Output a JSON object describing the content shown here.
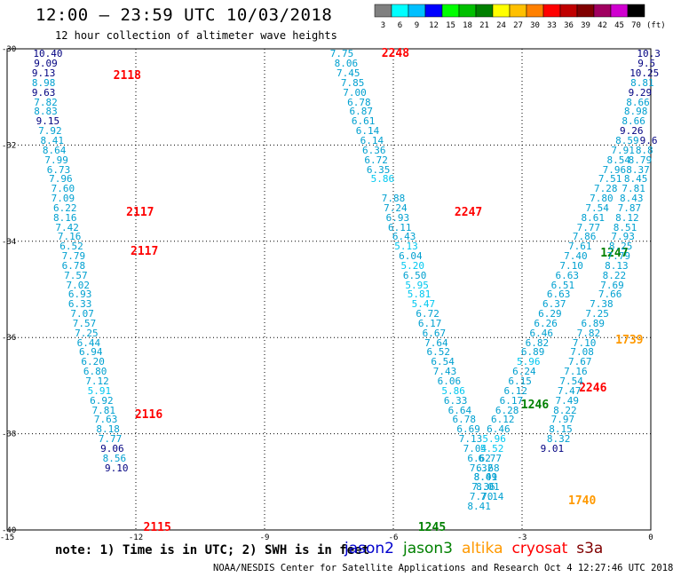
{
  "header": {
    "title": "12:00 – 23:59 UTC 10/03/2018",
    "subtitle": "12 hour collection of altimeter wave heights"
  },
  "colorbar": {
    "units": "(ft)",
    "bins": [
      {
        "label": "3",
        "color": "#808080"
      },
      {
        "label": "6",
        "color": "#00ffff"
      },
      {
        "label": "9",
        "color": "#00c0ff"
      },
      {
        "label": "12",
        "color": "#0000ff"
      },
      {
        "label": "15",
        "color": "#00ff00"
      },
      {
        "label": "18",
        "color": "#00c000"
      },
      {
        "label": "21",
        "color": "#008000"
      },
      {
        "label": "24",
        "color": "#ffff00"
      },
      {
        "label": "27",
        "color": "#ffc000"
      },
      {
        "label": "30",
        "color": "#ff8000"
      },
      {
        "label": "33",
        "color": "#ff0000"
      },
      {
        "label": "36",
        "color": "#c00000"
      },
      {
        "label": "39",
        "color": "#800000"
      },
      {
        "label": "42",
        "color": "#a00060"
      },
      {
        "label": "45",
        "color": "#d000d0"
      },
      {
        "label": "70",
        "color": "#000000"
      }
    ]
  },
  "axes": {
    "lat_labels": [
      "-30",
      "-32",
      "-34",
      "-36",
      "-38",
      "-40"
    ],
    "lon_labels": [
      "-15",
      "-12",
      "-9",
      "-6",
      "-3",
      "0"
    ]
  },
  "map": {
    "lon_range": [
      -15,
      0
    ],
    "lat_range": [
      -40,
      -30
    ]
  },
  "tracks": [
    {
      "name": "track-2118",
      "satellite": "cryosat",
      "times": [
        {
          "text": "2118",
          "lon": -12.2,
          "lat": -30.55
        },
        {
          "text": "2117",
          "lon": -11.9,
          "lat": -33.4
        },
        {
          "text": "2117",
          "lon": -11.8,
          "lat": -34.2
        },
        {
          "text": "2116",
          "lon": -11.7,
          "lat": -37.6
        },
        {
          "text": "2115",
          "lon": -11.5,
          "lat": -39.95
        }
      ],
      "points": [
        [
          "10.40",
          -14.05,
          -30.1,
          "#000080"
        ],
        [
          "9.09",
          -14.1,
          -30.3,
          "#000080"
        ],
        [
          "9.13",
          -14.15,
          -30.5,
          "#000080"
        ],
        [
          "8.98",
          -14.15,
          -30.7,
          "#00a0d0"
        ],
        [
          "9.63",
          -14.15,
          -30.9,
          "#000080"
        ],
        [
          "7.82",
          -14.1,
          -31.1,
          "#00a0d0"
        ],
        [
          "8.83",
          -14.1,
          -31.3,
          "#00a0d0"
        ],
        [
          "9.15",
          -14.05,
          -31.5,
          "#000080"
        ],
        [
          "7.92",
          -14.0,
          -31.7,
          "#00a0d0"
        ],
        [
          "8.41",
          -13.95,
          -31.9,
          "#00a0d0"
        ],
        [
          "8.64",
          -13.9,
          -32.1,
          "#00a0d0"
        ],
        [
          "7.99",
          -13.85,
          -32.3,
          "#00a0d0"
        ],
        [
          "6.73",
          -13.8,
          -32.5,
          "#00a0d0"
        ],
        [
          "7.96",
          -13.75,
          -32.7,
          "#00a0d0"
        ],
        [
          "7.60",
          -13.7,
          -32.9,
          "#00a0d0"
        ],
        [
          "7.09",
          -13.7,
          -33.1,
          "#00a0d0"
        ],
        [
          "6.22",
          -13.65,
          -33.3,
          "#00a0d0"
        ],
        [
          "8.16",
          -13.65,
          -33.5,
          "#00a0d0"
        ],
        [
          "7.42",
          -13.6,
          -33.7,
          "#00a0d0"
        ],
        [
          "7.16",
          -13.55,
          -33.9,
          "#00a0d0"
        ],
        [
          "6.52",
          -13.5,
          -34.1,
          "#00a0d0"
        ],
        [
          "7.79",
          -13.45,
          -34.3,
          "#00a0d0"
        ],
        [
          "6.78",
          -13.45,
          -34.5,
          "#00a0d0"
        ],
        [
          "7.57",
          -13.4,
          -34.7,
          "#00a0d0"
        ],
        [
          "7.02",
          -13.35,
          -34.9,
          "#00a0d0"
        ],
        [
          "6.93",
          -13.3,
          -35.1,
          "#00a0d0"
        ],
        [
          "6.33",
          -13.3,
          -35.3,
          "#00a0d0"
        ],
        [
          "7.07",
          -13.25,
          -35.5,
          "#00a0d0"
        ],
        [
          "7.57",
          -13.2,
          -35.7,
          "#00a0d0"
        ],
        [
          "7.25",
          -13.15,
          -35.9,
          "#00a0d0"
        ],
        [
          "6.44",
          -13.1,
          -36.1,
          "#00a0d0"
        ],
        [
          "6.94",
          -13.05,
          -36.3,
          "#00a0d0"
        ],
        [
          "6.20",
          -13.0,
          -36.5,
          "#00a0d0"
        ],
        [
          "6.80",
          -12.95,
          -36.7,
          "#00a0d0"
        ],
        [
          "7.12",
          -12.9,
          -36.9,
          "#00a0d0"
        ],
        [
          "5.91",
          -12.85,
          -37.1,
          "#00c8f0"
        ],
        [
          "6.92",
          -12.8,
          -37.3,
          "#00a0d0"
        ],
        [
          "7.81",
          -12.75,
          -37.5,
          "#00a0d0"
        ],
        [
          "7.63",
          -12.7,
          -37.7,
          "#00a0d0"
        ],
        [
          "8.18",
          -12.65,
          -37.9,
          "#00a0d0"
        ],
        [
          "7.77",
          -12.6,
          -38.1,
          "#00a0d0"
        ],
        [
          "9.06",
          -12.55,
          -38.3,
          "#000080"
        ],
        [
          "8.56",
          -12.5,
          -38.5,
          "#00a0d0"
        ],
        [
          "9.10",
          -12.45,
          -38.7,
          "#000080"
        ]
      ]
    },
    {
      "name": "track-2248",
      "satellite": "cryosat",
      "times": [
        {
          "text": "2248",
          "lon": -5.95,
          "lat": -30.1
        },
        {
          "text": "2247",
          "lon": -4.25,
          "lat": -33.4
        },
        {
          "text": "2246",
          "lon": -1.35,
          "lat": -37.05
        }
      ],
      "points": [
        [
          "7.75",
          -7.2,
          -30.1,
          "#00a0d0"
        ],
        [
          "8.06",
          -7.1,
          -30.3,
          "#00a0d0"
        ],
        [
          "7.45",
          -7.05,
          -30.5,
          "#00a0d0"
        ],
        [
          "7.85",
          -6.95,
          -30.7,
          "#00a0d0"
        ],
        [
          "7.00",
          -6.9,
          -30.9,
          "#00a0d0"
        ],
        [
          "6.78",
          -6.8,
          -31.1,
          "#00a0d0"
        ],
        [
          "6.87",
          -6.75,
          -31.3,
          "#00a0d0"
        ],
        [
          "6.61",
          -6.7,
          -31.5,
          "#00a0d0"
        ],
        [
          "6.14",
          -6.6,
          -31.7,
          "#00a0d0"
        ],
        [
          "6.14",
          -6.5,
          -31.9,
          "#00a0d0"
        ],
        [
          "6.36",
          -6.45,
          -32.1,
          "#00a0d0"
        ],
        [
          "6.72",
          -6.4,
          -32.3,
          "#00a0d0"
        ],
        [
          "6.35",
          -6.35,
          -32.5,
          "#00a0d0"
        ],
        [
          "5.86",
          -6.25,
          -32.7,
          "#00c8f0"
        ],
        [
          "7.88",
          -6.0,
          -33.1,
          "#00a0d0"
        ],
        [
          "7.24",
          -5.95,
          -33.3,
          "#00a0d0"
        ],
        [
          "6.93",
          -5.9,
          -33.5,
          "#00a0d0"
        ],
        [
          "6.11",
          -5.85,
          -33.7,
          "#00a0d0"
        ],
        [
          "6.43",
          -5.75,
          -33.9,
          "#00a0d0"
        ],
        [
          "5.13",
          -5.7,
          -34.1,
          "#00c8f0"
        ],
        [
          "6.04",
          -5.6,
          -34.3,
          "#00a0d0"
        ],
        [
          "5.20",
          -5.55,
          -34.5,
          "#00c8f0"
        ],
        [
          "6.50",
          -5.5,
          -34.7,
          "#00a0d0"
        ],
        [
          "5.95",
          -5.45,
          -34.9,
          "#00c8f0"
        ],
        [
          "5.81",
          -5.4,
          -35.1,
          "#00c8f0"
        ],
        [
          "5.47",
          -5.3,
          -35.3,
          "#00c8f0"
        ],
        [
          "6.72",
          -5.2,
          -35.5,
          "#00a0d0"
        ],
        [
          "6.17",
          -5.15,
          -35.7,
          "#00a0d0"
        ],
        [
          "6.67",
          -5.05,
          -35.9,
          "#00a0d0"
        ],
        [
          "7.64",
          -5.0,
          -36.1,
          "#00a0d0"
        ],
        [
          "6.52",
          -4.95,
          -36.3,
          "#00a0d0"
        ],
        [
          "6.54",
          -4.85,
          -36.5,
          "#00a0d0"
        ],
        [
          "7.43",
          -4.8,
          -36.7,
          "#00a0d0"
        ],
        [
          "6.06",
          -4.7,
          -36.9,
          "#00a0d0"
        ],
        [
          "5.86",
          -4.6,
          -37.1,
          "#00c8f0"
        ],
        [
          "6.33",
          -4.55,
          -37.3,
          "#00a0d0"
        ],
        [
          "6.64",
          -4.45,
          -37.5,
          "#00a0d0"
        ],
        [
          "6.78",
          -4.35,
          -37.7,
          "#00a0d0"
        ],
        [
          "6.69",
          -4.25,
          -37.9,
          "#00a0d0"
        ],
        [
          "7.13",
          -4.2,
          -38.1,
          "#00a0d0"
        ],
        [
          "7.04",
          -4.1,
          -38.3,
          "#00a0d0"
        ],
        [
          "6.62",
          -4.0,
          -38.5,
          "#00a0d0"
        ],
        [
          "7.32",
          -3.95,
          -38.7,
          "#00a0d0"
        ],
        [
          "8.41",
          -3.85,
          -38.9,
          "#00a0d0"
        ],
        [
          "8.01",
          -3.8,
          -39.1,
          "#00a0d0"
        ],
        [
          "7.14",
          -3.7,
          -39.3,
          "#00a0d0"
        ]
      ]
    },
    {
      "name": "track-1245",
      "satellite": "jason3",
      "times": [
        {
          "text": "1245",
          "lon": -5.1,
          "lat": -39.95
        },
        {
          "text": "1246",
          "lon": -2.7,
          "lat": -37.4
        },
        {
          "text": "1247",
          "lon": -0.85,
          "lat": -34.25
        }
      ],
      "points": [
        [
          "6.15",
          -3.05,
          -36.9,
          "#00a0d0"
        ],
        [
          "6.12",
          -3.15,
          -37.1,
          "#00a0d0"
        ],
        [
          "6.17",
          -3.25,
          -37.3,
          "#00a0d0"
        ],
        [
          "6.28",
          -3.35,
          -37.5,
          "#00a0d0"
        ],
        [
          "6.12",
          -3.45,
          -37.7,
          "#00a0d0"
        ],
        [
          "6.46",
          -3.55,
          -37.9,
          "#00a0d0"
        ],
        [
          "5.96",
          -3.65,
          -38.1,
          "#00c8f0"
        ],
        [
          "5.52",
          -3.7,
          -38.3,
          "#00c8f0"
        ],
        [
          "6.77",
          -3.75,
          -38.5,
          "#00a0d0"
        ],
        [
          "6.68",
          -3.8,
          -38.7,
          "#00a0d0"
        ],
        [
          "8.09",
          -3.85,
          -38.9,
          "#00a0d0"
        ],
        [
          "7.36",
          -3.9,
          -39.1,
          "#00a0d0"
        ],
        [
          "7.70",
          -3.95,
          -39.3,
          "#00a0d0"
        ],
        [
          "8.41",
          -4.0,
          -39.5,
          "#00a0d0"
        ],
        [
          "6.24",
          -2.95,
          -36.7,
          "#00a0d0"
        ],
        [
          "5.96",
          -2.85,
          -36.5,
          "#00c8f0"
        ],
        [
          "6.89",
          -2.75,
          -36.3,
          "#00a0d0"
        ],
        [
          "6.82",
          -2.65,
          -36.1,
          "#00a0d0"
        ],
        [
          "6.46",
          -2.55,
          -35.9,
          "#00a0d0"
        ],
        [
          "6.26",
          -2.45,
          -35.7,
          "#00a0d0"
        ],
        [
          "6.29",
          -2.35,
          -35.5,
          "#00a0d0"
        ],
        [
          "6.37",
          -2.25,
          -35.3,
          "#00a0d0"
        ],
        [
          "6.63",
          -2.15,
          -35.1,
          "#00a0d0"
        ],
        [
          "6.51",
          -2.05,
          -34.9,
          "#00a0d0"
        ],
        [
          "6.63",
          -1.95,
          -34.7,
          "#00a0d0"
        ],
        [
          "7.10",
          -1.85,
          -34.5,
          "#00a0d0"
        ],
        [
          "7.40",
          -1.75,
          -34.3,
          "#00a0d0"
        ],
        [
          "7.61",
          -1.65,
          -34.1,
          "#00a0d0"
        ],
        [
          "7.86",
          -1.55,
          -33.9,
          "#00a0d0"
        ],
        [
          "7.77",
          -1.45,
          -33.7,
          "#00a0d0"
        ],
        [
          "8.61",
          -1.35,
          -33.5,
          "#00a0d0"
        ],
        [
          "7.54",
          -1.25,
          -33.3,
          "#00a0d0"
        ],
        [
          "7.80",
          -1.15,
          -33.1,
          "#00a0d0"
        ],
        [
          "7.28",
          -1.05,
          -32.9,
          "#00a0d0"
        ],
        [
          "7.51",
          -0.95,
          -32.7,
          "#00a0d0"
        ],
        [
          "7.96",
          -0.85,
          -32.5,
          "#00a0d0"
        ],
        [
          "8.54",
          -0.75,
          -32.3,
          "#00a0d0"
        ],
        [
          "7.91",
          -0.65,
          -32.1,
          "#00a0d0"
        ],
        [
          "8.59",
          -0.55,
          -31.9,
          "#00a0d0"
        ],
        [
          "9.26",
          -0.45,
          -31.7,
          "#000080"
        ],
        [
          "8.66",
          -0.4,
          -31.5,
          "#00a0d0"
        ],
        [
          "8.98",
          -0.35,
          -31.3,
          "#00a0d0"
        ],
        [
          "8.66",
          -0.3,
          -31.1,
          "#00a0d0"
        ],
        [
          "9.29",
          -0.25,
          -30.9,
          "#000080"
        ],
        [
          "8.81",
          -0.2,
          -30.7,
          "#00a0d0"
        ],
        [
          "10.25",
          -0.15,
          -30.5,
          "#000080"
        ],
        [
          "9.5",
          -0.1,
          -30.3,
          "#000080"
        ],
        [
          "10.3",
          -0.05,
          -30.1,
          "#000080"
        ]
      ]
    },
    {
      "name": "track-1739",
      "satellite": "altika",
      "times": [
        {
          "text": "1739",
          "lon": -0.5,
          "lat": -36.05
        },
        {
          "text": "1740",
          "lon": -1.6,
          "lat": -39.4
        }
      ],
      "points": [
        [
          "9.6",
          -0.05,
          -31.9,
          "#000080"
        ],
        [
          "8.8",
          -0.15,
          -32.1,
          "#00a0d0"
        ],
        [
          "8.79",
          -0.25,
          -32.3,
          "#00a0d0"
        ],
        [
          "8.37",
          -0.3,
          -32.5,
          "#00a0d0"
        ],
        [
          "8.45",
          -0.35,
          -32.7,
          "#00a0d0"
        ],
        [
          "7.81",
          -0.4,
          -32.9,
          "#00a0d0"
        ],
        [
          "8.43",
          -0.45,
          -33.1,
          "#00a0d0"
        ],
        [
          "7.87",
          -0.5,
          -33.3,
          "#00a0d0"
        ],
        [
          "8.12",
          -0.55,
          -33.5,
          "#00a0d0"
        ],
        [
          "8.51",
          -0.6,
          -33.7,
          "#00a0d0"
        ],
        [
          "7.93",
          -0.65,
          -33.9,
          "#00a0d0"
        ],
        [
          "8.25",
          -0.7,
          -34.1,
          "#00a0d0"
        ],
        [
          "7.79",
          -0.75,
          -34.3,
          "#00a0d0"
        ],
        [
          "8.13",
          -0.8,
          -34.5,
          "#00a0d0"
        ],
        [
          "8.22",
          -0.85,
          -34.7,
          "#00a0d0"
        ],
        [
          "7.69",
          -0.9,
          -34.9,
          "#00a0d0"
        ],
        [
          "7.66",
          -0.95,
          -35.1,
          "#00a0d0"
        ],
        [
          "7.38",
          -1.15,
          -35.3,
          "#00a0d0"
        ],
        [
          "7.25",
          -1.25,
          -35.5,
          "#00a0d0"
        ],
        [
          "6.89",
          -1.35,
          -35.7,
          "#00a0d0"
        ],
        [
          "7.82",
          -1.45,
          -35.9,
          "#00a0d0"
        ],
        [
          "7.10",
          -1.55,
          -36.1,
          "#00a0d0"
        ],
        [
          "7.08",
          -1.6,
          -36.3,
          "#00a0d0"
        ],
        [
          "7.67",
          -1.65,
          -36.5,
          "#00a0d0"
        ],
        [
          "7.16",
          -1.75,
          -36.7,
          "#00a0d0"
        ],
        [
          "7.54",
          -1.85,
          -36.9,
          "#00a0d0"
        ],
        [
          "7.47",
          -1.9,
          -37.1,
          "#00a0d0"
        ],
        [
          "7.49",
          -1.95,
          -37.3,
          "#00a0d0"
        ],
        [
          "8.22",
          -2.0,
          -37.5,
          "#00a0d0"
        ],
        [
          "7.97",
          -2.05,
          -37.7,
          "#00a0d0"
        ],
        [
          "8.15",
          -2.1,
          -37.9,
          "#00a0d0"
        ],
        [
          "8.32",
          -2.15,
          -38.1,
          "#00a0d0"
        ],
        [
          "9.01",
          -2.3,
          -38.3,
          "#000080"
        ]
      ]
    }
  ],
  "note": "note: 1) Time is in UTC; 2) SWH is in feet",
  "legend": [
    {
      "label": "jason2",
      "color": "#0000cc"
    },
    {
      "label": "jason3",
      "color": "#008000"
    },
    {
      "label": "altika",
      "color": "#ff9900"
    },
    {
      "label": "cryosat",
      "color": "#ff0000"
    },
    {
      "label": "s3a",
      "color": "#800000"
    }
  ],
  "footer": "NOAA/NESDIS Center for Satellite Applications and Research    Oct  4 12:27:46 UTC 2018"
}
